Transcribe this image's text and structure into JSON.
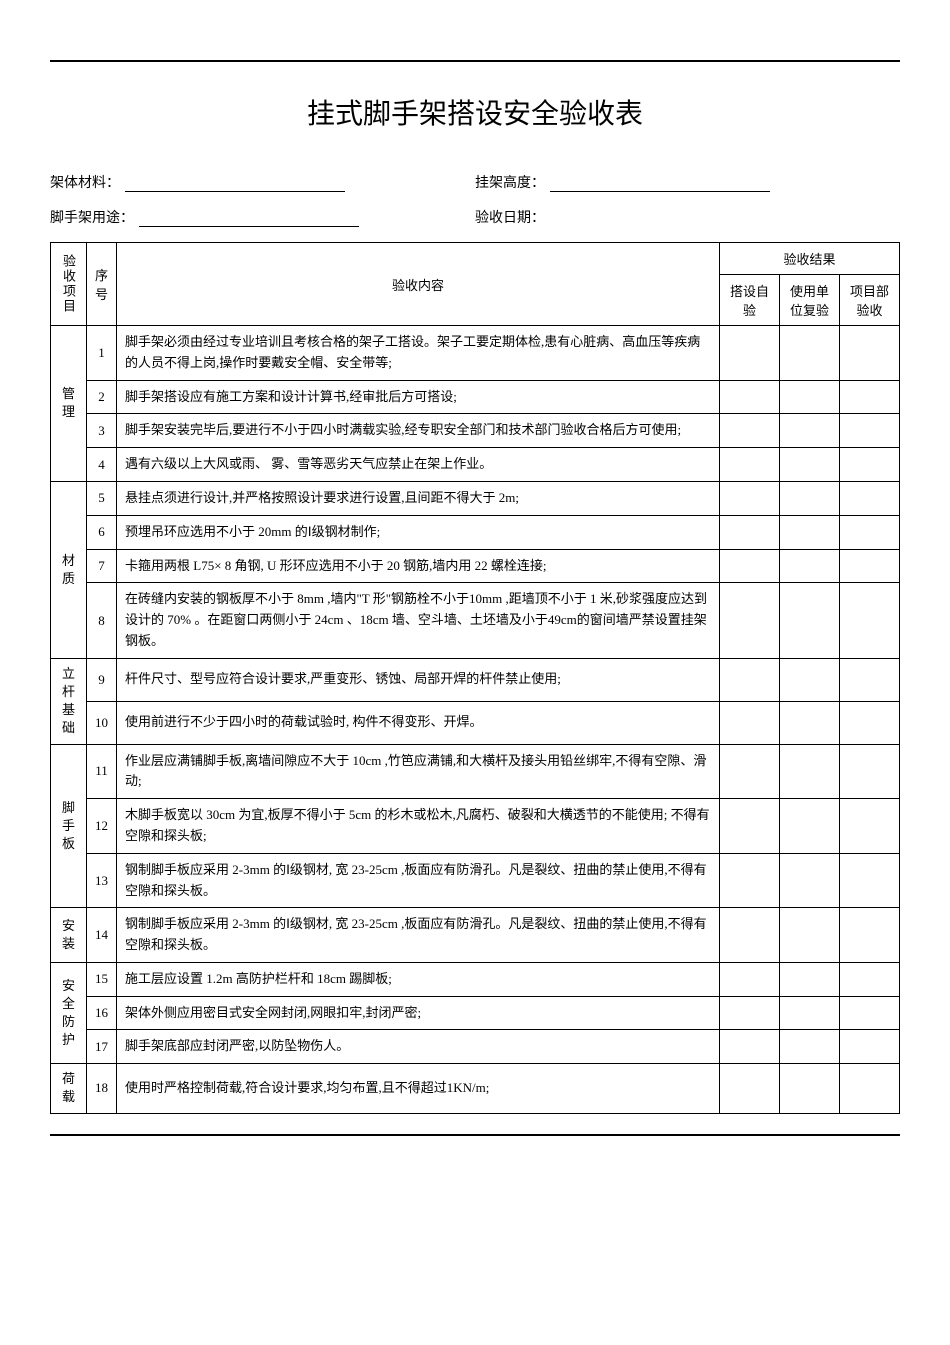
{
  "title": "挂式脚手架搭设安全验收表",
  "fields": {
    "material_label": "架体材料：",
    "height_label": "挂架高度：",
    "usage_label": "脚手架用途：",
    "date_label": "验收日期："
  },
  "headers": {
    "category": "验收项目",
    "num": "序号",
    "content": "验收内容",
    "result": "验收结果",
    "self_check": "搭设自验",
    "unit_check": "使用单位复验",
    "project_check": "项目部验收"
  },
  "categories": {
    "management": "管理",
    "material": "材质",
    "post_base": "立杆基础",
    "scaffold_board": "脚手板",
    "install": "安装",
    "safety": "安全防护",
    "load": "荷载"
  },
  "rows": [
    {
      "num": "1",
      "content": "脚手架必须由经过专业培训且考核合格的架子工搭设。架子工要定期体检,患有心脏病、高血压等疾病的人员不得上岗,操作时要戴安全帽、安全带等;"
    },
    {
      "num": "2",
      "content": "脚手架搭设应有施工方案和设计计算书,经审批后方可搭设;"
    },
    {
      "num": "3",
      "content": "脚手架安装完毕后,要进行不小于四小时满载实验,经专职安全部门和技术部门验收合格后方可使用;"
    },
    {
      "num": "4",
      "content": "遇有六级以上大风或雨、  雾、雪等恶劣天气应禁止在架上作业。"
    },
    {
      "num": "5",
      "content": "悬挂点须进行设计,并严格按照设计要求进行设置,且间距不得大于 2m;"
    },
    {
      "num": "6",
      "content": "预埋吊环应选用不小于   20mm 的Ⅰ级钢材制作;"
    },
    {
      "num": "7",
      "content": "卡箍用两根 L75× 8 角钢, U 形环应选用不小于   20 钢筋,墙内用 22 螺栓连接;"
    },
    {
      "num": "8",
      "content": "在砖缝内安装的钢板厚不小于    8mm ,墙内\"T 形\"钢筋栓不小于10mm ,距墙顶不小于  1 米,砂浆强度应达到设计的   70% 。在距窗口两侧小于 24cm 、18cm 墙、空斗墙、土坯墙及小于49cm的窗间墙严禁设置挂架钢板。"
    },
    {
      "num": "9",
      "content": "杆件尺寸、型号应符合设计要求,严重变形、锈蚀、局部开焊的杆件禁止使用;"
    },
    {
      "num": "10",
      "content": "使用前进行不少于四小时的荷载试验时,    构件不得变形、开焊。"
    },
    {
      "num": "11",
      "content": "作业层应满铺脚手板,离墙间隙应不大于     10cm ,竹笆应满铺,和大横杆及接头用铅丝绑牢,不得有空隙、滑动;"
    },
    {
      "num": "12",
      "content": "木脚手板宽以 30cm 为宜,板厚不得小于  5cm 的杉木或松木,凡腐朽、破裂和大横透节的不能使用; 不得有空隙和探头板;"
    },
    {
      "num": "13",
      "content": "钢制脚手板应采用  2-3mm 的Ⅰ级钢材, 宽 23-25cm ,板面应有防滑孔。凡是裂纹、扭曲的禁止使用,不得有空隙和探头板。"
    },
    {
      "num": "14",
      "content": "钢制脚手板应采用  2-3mm 的Ⅰ级钢材, 宽 23-25cm ,板面应有防滑孔。凡是裂纹、扭曲的禁止使用,不得有空隙和探头板。"
    },
    {
      "num": "15",
      "content": "施工层应设置  1.2m 高防护栏杆和  18cm 踢脚板;"
    },
    {
      "num": "16",
      "content": "架体外侧应用密目式安全网封闭,网眼扣牢,封闭严密;"
    },
    {
      "num": "17",
      "content": "脚手架底部应封闭严密,以防坠物伤人。"
    },
    {
      "num": "18",
      "content": "使用时严格控制荷载,符合设计要求,均匀布置,且不得超过1KN/m;"
    }
  ]
}
